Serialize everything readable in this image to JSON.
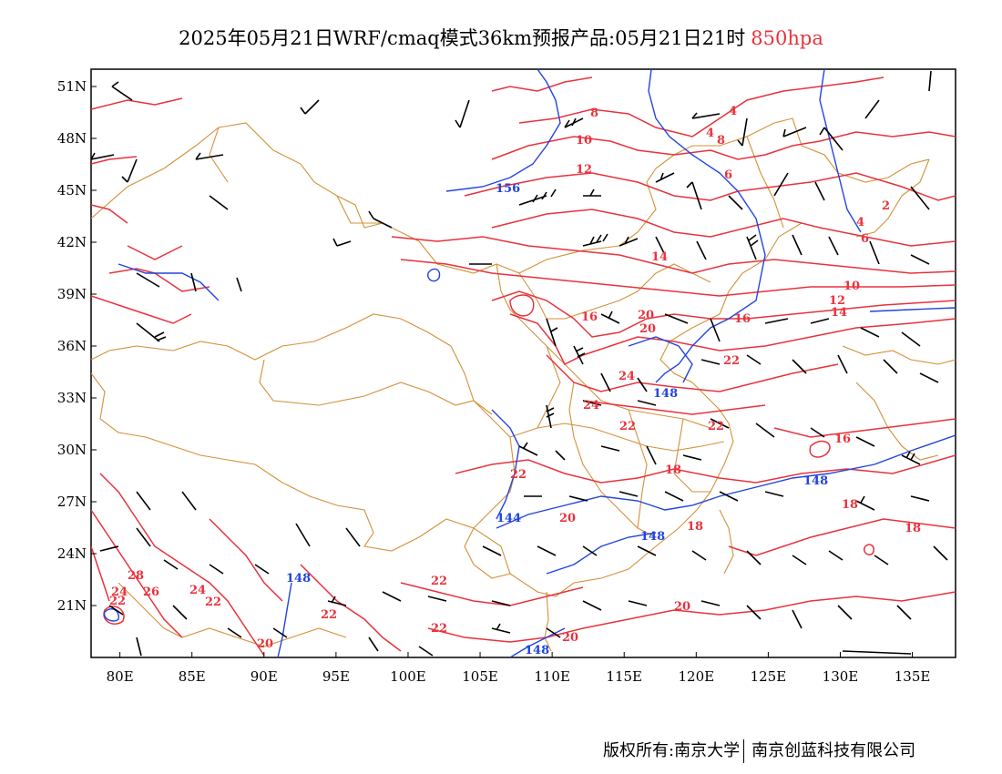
{
  "title": {
    "main": "2025年05月21日WRF/cmaq模式36km预报产品:05月21日21时",
    "level": "850hpa"
  },
  "colors": {
    "temperature": "#e8323c",
    "geopotential": "#2244dd",
    "border": "#d4903a",
    "wind": "#000000"
  },
  "axes": {
    "x_ticks": [
      "80E",
      "85E",
      "90E",
      "95E",
      "100E",
      "105E",
      "110E",
      "115E",
      "120E",
      "125E",
      "130E",
      "135E"
    ],
    "y_ticks": [
      "51N",
      "48N",
      "45N",
      "42N",
      "39N",
      "36N",
      "33N",
      "30N",
      "27N",
      "24N",
      "21N"
    ],
    "lon_range": [
      78,
      138
    ],
    "lat_range": [
      18,
      52
    ]
  },
  "labels": {
    "temperature": [
      "8",
      "10",
      "12",
      "4",
      "4",
      "6",
      "8",
      "2",
      "4",
      "6",
      "10",
      "12",
      "14",
      "14",
      "16",
      "16",
      "20",
      "20",
      "22",
      "24",
      "24",
      "22",
      "22",
      "18",
      "18",
      "18",
      "16",
      "18",
      "20",
      "20",
      "22",
      "22",
      "22",
      "20",
      "24",
      "26",
      "28",
      "24",
      "22",
      "22",
      "20",
      "22"
    ],
    "geopotential": [
      "156",
      "148",
      "148",
      "148",
      "144",
      "148",
      "148"
    ]
  },
  "footer": {
    "left": "版权所有:南京大学",
    "right": "南京创蓝科技有限公司"
  }
}
